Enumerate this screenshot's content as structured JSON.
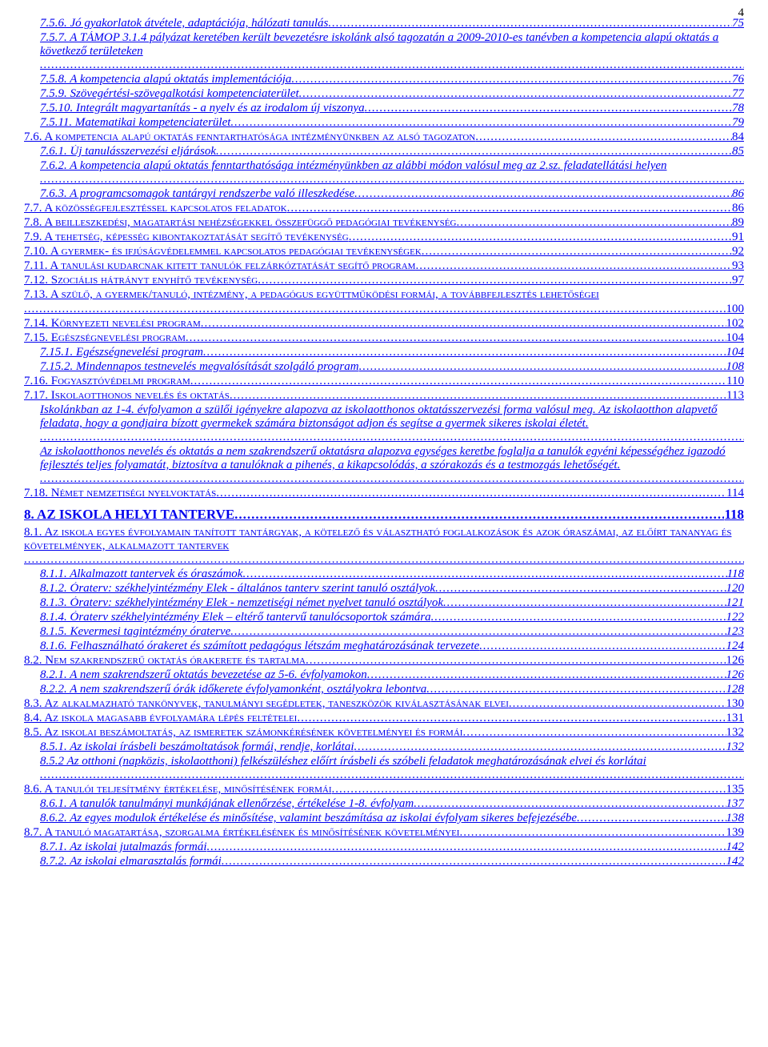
{
  "page_number": "4",
  "entries": [
    {
      "indent": 1,
      "italic": true,
      "text": "7.5.6. Jó gyakorlatok átvétele, adaptációja, hálózati tanulás",
      "page": "75"
    },
    {
      "indent": 1,
      "italic": true,
      "text": "7.5.7. A TÁMOP 3.1.4 pályázat keretében került bevezetésre iskolánk alsó tagozatán a 2009-2010-es tanévben a kompetencia alapú oktatás a következő területeken",
      "page": "76",
      "wrap": true
    },
    {
      "indent": 1,
      "italic": true,
      "text": "7.5.8.  A  kompetencia alapú oktatás implementációja",
      "page": "76"
    },
    {
      "indent": 1,
      "italic": true,
      "text": "7.5.9. Szövegértési-szövegalkotási kompetenciaterület",
      "page": "77"
    },
    {
      "indent": 1,
      "italic": true,
      "text": "7.5.10. Integrált magyartanítás - a nyelv és az irodalom új viszonya",
      "page": "78"
    },
    {
      "indent": 1,
      "italic": true,
      "text": "7.5.11. Matematikai kompetenciaterület",
      "page": "79"
    },
    {
      "indent": 0,
      "smallcaps": true,
      "text": "7.6. A kompetencia alapú oktatás fenntarthatósága intézményünkben az alsó tagozaton",
      "page": "84"
    },
    {
      "indent": 1,
      "italic": true,
      "text": "7.6.1. Új tanulásszervezési eljárások",
      "page": "85"
    },
    {
      "indent": 1,
      "italic": true,
      "text": "7.6.2. A kompetencia alapú oktatás fenntarthatósága intézményünkben az alábbi módon valósul meg az 2.sz. feladatellátási helyen",
      "page": "85",
      "wrap": true
    },
    {
      "indent": 1,
      "italic": true,
      "text": "7.6.3. A programcsomagok tantárgyi rendszerbe való illeszkedése",
      "page": "86"
    },
    {
      "indent": 0,
      "smallcaps": true,
      "text": "7.7. A közösségfejlesztéssel kapcsolatos feladatok",
      "page": "86"
    },
    {
      "indent": 0,
      "smallcaps": true,
      "text": "7.8. A beilleszkedési, magatartási nehézségekkel összefüggő pedagógiai tevékenység",
      "page": "89"
    },
    {
      "indent": 0,
      "smallcaps": true,
      "text": "7.9. A tehetség, képesség kibontakoztatását segítő tevékenység",
      "page": "91"
    },
    {
      "indent": 0,
      "smallcaps": true,
      "text": "7.10. A gyermek- és ifjúságvédelemmel kapcsolatos pedagógiai tevékenységek",
      "page": "92"
    },
    {
      "indent": 0,
      "smallcaps": true,
      "text": "7.11. A tanulási kudarcnak kitett tanulók felzárkóztatását segítő program",
      "page": "93"
    },
    {
      "indent": 0,
      "smallcaps": true,
      "text": "7.12. Szociális hátrányt enyhítő tevékenység",
      "page": "97"
    },
    {
      "indent": 0,
      "smallcaps": true,
      "text": "7.13. A szülő, a gyermek/tanuló, intézmény, a pedagógus együttműködési formái, a továbbfejlesztés lehetőségei",
      "page": "100",
      "wrap": true,
      "breakline": true
    },
    {
      "indent": 0,
      "smallcaps": true,
      "text": "7.14. Környezeti nevelési program",
      "page": "102"
    },
    {
      "indent": 0,
      "smallcaps": true,
      "text": "7.15. Egészségnevelési program",
      "page": "104"
    },
    {
      "indent": 1,
      "italic": true,
      "text": "7.15.1. Egészségnevelési program",
      "page": "104"
    },
    {
      "indent": 1,
      "italic": true,
      "text": "7.15.2. Mindennapos testnevelés megvalósítását szolgáló program",
      "page": "108"
    },
    {
      "indent": 0,
      "smallcaps": true,
      "text": "7.16. Fogyasztóvédelmi program",
      "page": "110"
    },
    {
      "indent": 0,
      "smallcaps": true,
      "text": "7.17. Iskolaotthonos nevelés és oktatás",
      "page": "113"
    },
    {
      "indent": 1,
      "italic": true,
      "text": "Iskolánkban az 1-4. évfolyamon a szülői igényekre alapozva az iskolaotthonos oktatásszervezési forma valósul meg. Az iskolaotthon alapvető feladata, hogy a gondjaira bízott gyermekek számára biztonságot adjon és segítse a gyermek sikeres iskolai életét.",
      "page": "113",
      "wrap": true
    },
    {
      "indent": 1,
      "italic": true,
      "text": "Az iskolaotthonos nevelés és oktatás a nem szakrendszerű oktatásra alapozva egységes keretbe foglalja a tanulók egyéni képességéhez igazodó fejlesztés teljes folyamatát, biztosítva a tanulóknak a pihenés, a kikapcsolódás, a szórakozás és a testmozgás lehetőségét.",
      "page": "113",
      "wrap": true
    },
    {
      "indent": 0,
      "smallcaps": true,
      "text": "7.18. Német nemzetiségi nyelvoktatás",
      "page": "114"
    },
    {
      "indent": 0,
      "h1": true,
      "text": "8. AZ ISKOLA HELYI TANTERVE",
      "page": "118"
    },
    {
      "indent": 0,
      "smallcaps": true,
      "text": "8.1. Az iskola egyes évfolyamain tanított tantárgyak, a kötelező és választható foglalkozások és azok óraszámai, az előírt tananyag és követelmények, alkalmazott tantervek",
      "page": "118",
      "wrap": true
    },
    {
      "indent": 1,
      "italic": true,
      "text": "8.1.1. Alkalmazott tantervek és óraszámok",
      "page": "118"
    },
    {
      "indent": 1,
      "italic": true,
      "text": "8.1.2. Óraterv: székhelyintézmény Elek - általános tanterv szerint tanuló osztályok",
      "page": "120"
    },
    {
      "indent": 1,
      "italic": true,
      "text": "8.1.3. Óraterv: székhelyintézmény Elek - nemzetiségi német nyelvet tanuló osztályok",
      "page": "121"
    },
    {
      "indent": 1,
      "italic": true,
      "text": "8.1.4. Óraterv székhelyintézmény Elek – eltérő tantervű tanulócsoportok számára",
      "page": "122"
    },
    {
      "indent": 1,
      "italic": true,
      "text": "8.1.5. Kevermesi tagintézmény óraterve",
      "page": "123"
    },
    {
      "indent": 1,
      "italic": true,
      "text": "8.1.6. Felhasználható órakeret és számított pedagógus létszám meghatározásának tervezete",
      "page": "124"
    },
    {
      "indent": 0,
      "smallcaps": true,
      "text": "8.2. Nem szakrendszerű oktatás órakerete és tartalma",
      "page": "126"
    },
    {
      "indent": 1,
      "italic": true,
      "text": "8.2.1. A nem szakrendszerű oktatás bevezetése az 5-6. évfolyamokon",
      "page": "126"
    },
    {
      "indent": 1,
      "italic": true,
      "text": "8.2.2. A nem szakrendszerű órák időkerete évfolyamonként, osztályokra lebontva",
      "page": "128"
    },
    {
      "indent": 0,
      "smallcaps": true,
      "text": "8.3. Az alkalmazható tankönyvek, tanulmányi segédletek, taneszközök kiválasztásának elvei",
      "page": "130"
    },
    {
      "indent": 0,
      "smallcaps": true,
      "text": "8.4. Az iskola magasabb évfolyamára lépés feltételei",
      "page": "131"
    },
    {
      "indent": 0,
      "smallcaps": true,
      "text": "8.5. Az iskolai beszámoltatás, az ismeretek számonkérésének követelményei és formái",
      "page": "132"
    },
    {
      "indent": 1,
      "italic": true,
      "text": "8.5.1. Az iskolai írásbeli beszámoltatások formái, rendje, korlátai",
      "page": "132"
    },
    {
      "indent": 1,
      "italic": true,
      "text": "8.5.2 Az otthoni (napközis, iskolaotthoni) felkészüléshez előírt írásbeli és szóbeli feladatok meghatározásának elvei és korlátai",
      "page": "134",
      "wrap": true
    },
    {
      "indent": 0,
      "smallcaps": true,
      "text": "8.6. A tanulói teljesítmény értékelése, minősítésének formái",
      "page": "135"
    },
    {
      "indent": 1,
      "italic": true,
      "text": "8.6.1. A tanulók tanulmányi munkájának ellenőrzése, értékelése 1-8. évfolyam",
      "page": "137"
    },
    {
      "indent": 1,
      "italic": true,
      "text": "8.6.2. Az egyes modulok értékelése és minősítése, valamint beszámítása az iskolai évfolyam sikeres befejezésébe",
      "page": "138"
    },
    {
      "indent": 0,
      "smallcaps": true,
      "text": "8.7. A tanuló magatartása, szorgalma értékelésének és minősítésének követelményei",
      "page": "139"
    },
    {
      "indent": 1,
      "italic": true,
      "text": "8.7.1. Az iskolai jutalmazás formái",
      "page": "142"
    },
    {
      "indent": 1,
      "italic": true,
      "text": "8.7.2. Az iskolai elmarasztalás formái",
      "page": "142"
    }
  ]
}
